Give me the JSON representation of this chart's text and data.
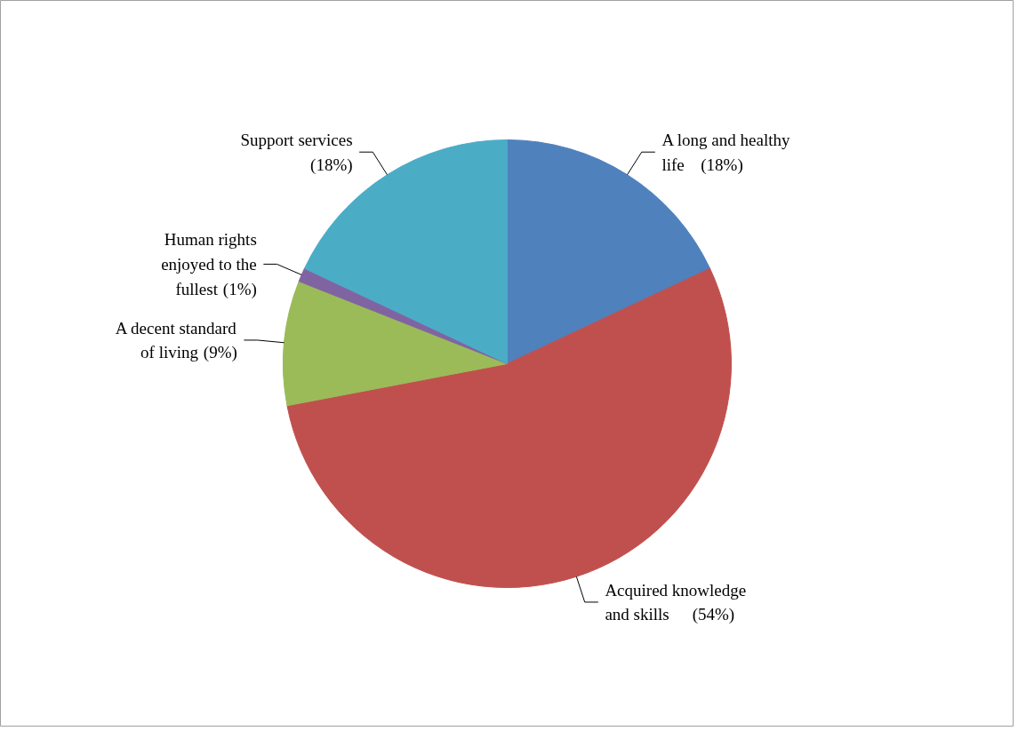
{
  "chart_data": {
    "type": "pie",
    "categories": [
      "A long and healthy life",
      "Acquired knowledge and skills",
      "A decent standard of living",
      "Human rights enjoyed to the fullest",
      "Support services"
    ],
    "values": [
      18,
      54,
      9,
      1,
      18
    ],
    "colors": [
      "#4f81bd",
      "#c0504d",
      "#9bbb59",
      "#8064a2",
      "#4bacc6"
    ],
    "value_labels": [
      "(18%)",
      "(54%)",
      "(9%)",
      "(1%)",
      "(18%)"
    ]
  }
}
